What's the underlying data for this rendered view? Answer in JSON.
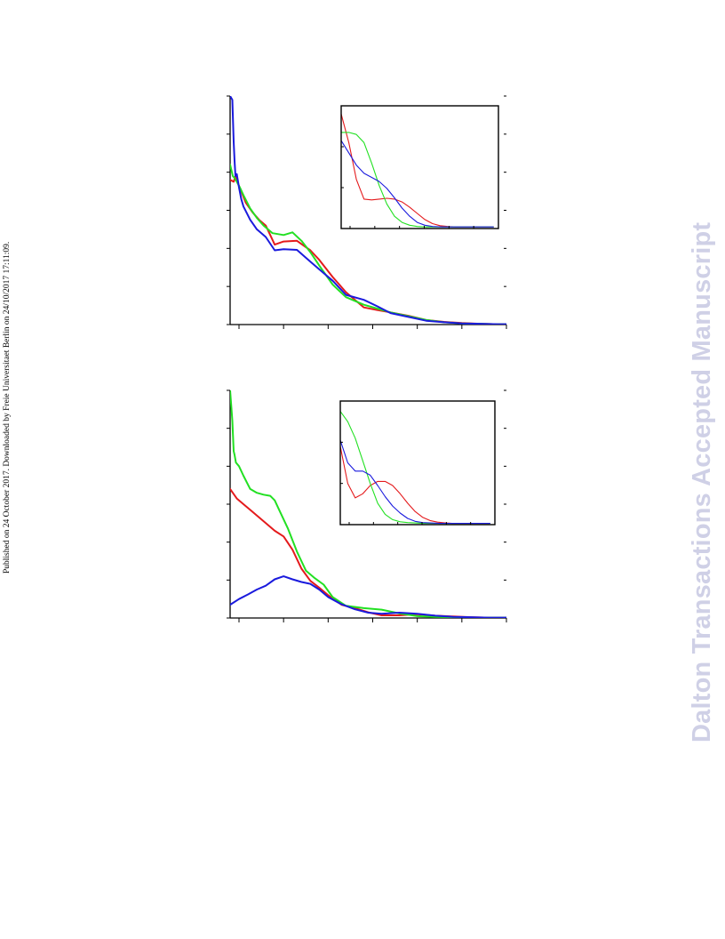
{
  "page": {
    "side_note": "Published on 24 October 2017. Downloaded by Freie Universitaet Berlin on 24/10/2017 17:11:09.",
    "watermark": "Dalton Transactions Accepted Manuscript"
  },
  "colors": {
    "red": "#e41a1c",
    "green": "#22e022",
    "blue": "#1a1add",
    "axis": "#000000"
  },
  "chart_data": [
    {
      "type": "line",
      "panel": "top",
      "xlim": [
        0,
        6.2
      ],
      "ylim": [
        0,
        6
      ],
      "series": [
        {
          "color": "red",
          "x": [
            0.0,
            0.08,
            0.12,
            0.18,
            0.25,
            0.35,
            0.5,
            0.65,
            0.8,
            1.0,
            1.2,
            1.5,
            1.8,
            2.0,
            2.3,
            2.6,
            3.0,
            3.3,
            3.6,
            4.0,
            4.4,
            4.8,
            5.2,
            5.6,
            6.0,
            6.2
          ],
          "y": [
            3.8,
            3.75,
            3.9,
            3.7,
            3.5,
            3.2,
            2.95,
            2.75,
            2.6,
            2.1,
            2.18,
            2.2,
            1.95,
            1.7,
            1.25,
            0.85,
            0.45,
            0.38,
            0.32,
            0.23,
            0.12,
            0.07,
            0.04,
            0.02,
            0.01,
            0.01
          ]
        },
        {
          "color": "green",
          "x": [
            0.0,
            0.06,
            0.1,
            0.15,
            0.22,
            0.3,
            0.45,
            0.6,
            0.75,
            0.95,
            1.2,
            1.4,
            1.6,
            1.8,
            2.0,
            2.3,
            2.6,
            3.0,
            3.3,
            3.6,
            4.0,
            4.4,
            4.8,
            5.2,
            5.6,
            6.0,
            6.2
          ],
          "y": [
            4.2,
            3.9,
            3.85,
            3.75,
            3.6,
            3.4,
            3.05,
            2.8,
            2.6,
            2.4,
            2.35,
            2.42,
            2.2,
            1.9,
            1.55,
            1.05,
            0.72,
            0.52,
            0.42,
            0.32,
            0.22,
            0.12,
            0.06,
            0.03,
            0.02,
            0.01,
            0.01
          ]
        },
        {
          "color": "blue",
          "x": [
            0.0,
            0.05,
            0.08,
            0.1,
            0.12,
            0.15,
            0.2,
            0.25,
            0.3,
            0.45,
            0.6,
            0.8,
            1.0,
            1.2,
            1.5,
            1.8,
            2.0,
            2.3,
            2.6,
            3.0,
            3.3,
            3.6,
            4.0,
            4.4,
            4.8,
            5.2,
            5.6,
            6.0,
            6.2
          ],
          "y": [
            6.0,
            5.9,
            4.8,
            4.3,
            3.9,
            3.95,
            3.6,
            3.3,
            3.1,
            2.75,
            2.5,
            2.3,
            1.95,
            1.98,
            1.96,
            1.65,
            1.45,
            1.15,
            0.78,
            0.65,
            0.48,
            0.3,
            0.2,
            0.1,
            0.06,
            0.03,
            0.02,
            0.01,
            0.01
          ]
        }
      ],
      "inset": {
        "xlim": [
          0,
          6.2
        ],
        "ylim": [
          0,
          3
        ],
        "series": [
          {
            "color": "red",
            "x": [
              0.0,
              0.3,
              0.6,
              0.9,
              1.2,
              1.5,
              1.8,
              2.1,
              2.4,
              2.7,
              3.0,
              3.3,
              3.6,
              3.9,
              4.2,
              4.5,
              4.8,
              5.2,
              5.6,
              6.0
            ],
            "y": [
              2.8,
              2.1,
              1.2,
              0.72,
              0.7,
              0.72,
              0.74,
              0.72,
              0.65,
              0.52,
              0.37,
              0.22,
              0.12,
              0.07,
              0.05,
              0.04,
              0.04,
              0.04,
              0.04,
              0.04
            ]
          },
          {
            "color": "green",
            "x": [
              0.0,
              0.3,
              0.6,
              0.9,
              1.2,
              1.5,
              1.8,
              2.1,
              2.4,
              2.7,
              3.0,
              3.3,
              3.6,
              4.0,
              4.5,
              5.0,
              5.5,
              6.0
            ],
            "y": [
              2.35,
              2.35,
              2.3,
              2.1,
              1.6,
              1.05,
              0.6,
              0.3,
              0.15,
              0.08,
              0.05,
              0.04,
              0.04,
              0.04,
              0.04,
              0.04,
              0.04,
              0.04
            ]
          },
          {
            "color": "blue",
            "x": [
              0.0,
              0.3,
              0.6,
              0.9,
              1.2,
              1.5,
              1.8,
              2.1,
              2.4,
              2.7,
              3.0,
              3.3,
              3.6,
              4.0,
              4.5,
              5.0,
              5.5,
              6.0
            ],
            "y": [
              2.15,
              1.85,
              1.55,
              1.35,
              1.25,
              1.15,
              0.98,
              0.75,
              0.5,
              0.3,
              0.15,
              0.08,
              0.05,
              0.04,
              0.04,
              0.04,
              0.04,
              0.04
            ]
          }
        ]
      }
    },
    {
      "type": "line",
      "panel": "bottom",
      "xlim": [
        0,
        6.2
      ],
      "ylim": [
        0,
        6
      ],
      "series": [
        {
          "color": "red",
          "x": [
            0.0,
            0.15,
            0.3,
            0.45,
            0.6,
            0.8,
            1.0,
            1.2,
            1.4,
            1.6,
            1.8,
            2.0,
            2.2,
            2.5,
            2.8,
            3.1,
            3.4,
            3.8,
            4.2,
            4.6,
            5.0,
            5.4,
            5.8,
            6.2
          ],
          "y": [
            3.4,
            3.15,
            3.0,
            2.85,
            2.7,
            2.5,
            2.3,
            2.15,
            1.8,
            1.3,
            0.98,
            0.8,
            0.6,
            0.35,
            0.26,
            0.15,
            0.07,
            0.07,
            0.1,
            0.06,
            0.04,
            0.02,
            0.01,
            0.01
          ]
        },
        {
          "color": "green",
          "x": [
            0.0,
            0.05,
            0.08,
            0.1,
            0.13,
            0.2,
            0.3,
            0.45,
            0.6,
            0.75,
            0.9,
            1.0,
            1.1,
            1.3,
            1.5,
            1.7,
            1.9,
            2.1,
            2.3,
            2.6,
            3.0,
            3.4,
            3.8,
            4.2,
            4.6,
            5.0,
            5.4,
            5.8,
            6.2
          ],
          "y": [
            6.0,
            5.2,
            4.4,
            4.3,
            4.1,
            4.0,
            3.75,
            3.4,
            3.3,
            3.25,
            3.22,
            3.1,
            2.85,
            2.35,
            1.75,
            1.25,
            1.05,
            0.88,
            0.55,
            0.32,
            0.26,
            0.22,
            0.12,
            0.05,
            0.03,
            0.02,
            0.01,
            0.01,
            0.01
          ]
        },
        {
          "color": "blue",
          "x": [
            0.0,
            0.2,
            0.4,
            0.6,
            0.8,
            1.0,
            1.2,
            1.4,
            1.6,
            1.8,
            2.0,
            2.2,
            2.5,
            2.8,
            3.1,
            3.4,
            3.8,
            4.2,
            4.6,
            5.0,
            5.4,
            5.8,
            6.2
          ],
          "y": [
            0.35,
            0.5,
            0.62,
            0.75,
            0.85,
            1.02,
            1.1,
            1.02,
            0.95,
            0.9,
            0.75,
            0.55,
            0.36,
            0.23,
            0.14,
            0.11,
            0.14,
            0.11,
            0.06,
            0.03,
            0.02,
            0.01,
            0.01
          ]
        }
      ],
      "inset": {
        "xlim": [
          0,
          6.2
        ],
        "ylim": [
          0,
          3
        ],
        "series": [
          {
            "color": "red",
            "x": [
              0.0,
              0.3,
              0.6,
              0.9,
              1.2,
              1.5,
              1.8,
              2.1,
              2.4,
              2.7,
              3.0,
              3.3,
              3.6,
              3.9,
              4.2,
              4.5,
              4.8,
              5.2,
              5.6,
              6.0
            ],
            "y": [
              1.9,
              1.0,
              0.65,
              0.75,
              0.95,
              1.05,
              1.05,
              0.95,
              0.75,
              0.52,
              0.32,
              0.18,
              0.1,
              0.06,
              0.04,
              0.03,
              0.03,
              0.03,
              0.03,
              0.03
            ]
          },
          {
            "color": "green",
            "x": [
              0.0,
              0.3,
              0.6,
              0.9,
              1.2,
              1.5,
              1.8,
              2.1,
              2.4,
              2.7,
              3.0,
              3.3,
              3.6,
              4.0,
              4.5,
              5.0,
              5.5,
              6.0
            ],
            "y": [
              2.75,
              2.5,
              2.1,
              1.55,
              1.0,
              0.52,
              0.25,
              0.12,
              0.07,
              0.05,
              0.04,
              0.03,
              0.03,
              0.03,
              0.03,
              0.03,
              0.03,
              0.03
            ]
          },
          {
            "color": "blue",
            "x": [
              0.0,
              0.3,
              0.6,
              0.9,
              1.2,
              1.5,
              1.8,
              2.1,
              2.4,
              2.7,
              3.0,
              3.3,
              3.6,
              4.0,
              4.5,
              5.0,
              5.5,
              6.0
            ],
            "y": [
              2.05,
              1.5,
              1.3,
              1.3,
              1.2,
              0.95,
              0.68,
              0.45,
              0.28,
              0.15,
              0.08,
              0.05,
              0.04,
              0.03,
              0.03,
              0.03,
              0.03,
              0.03
            ]
          }
        ]
      }
    }
  ]
}
